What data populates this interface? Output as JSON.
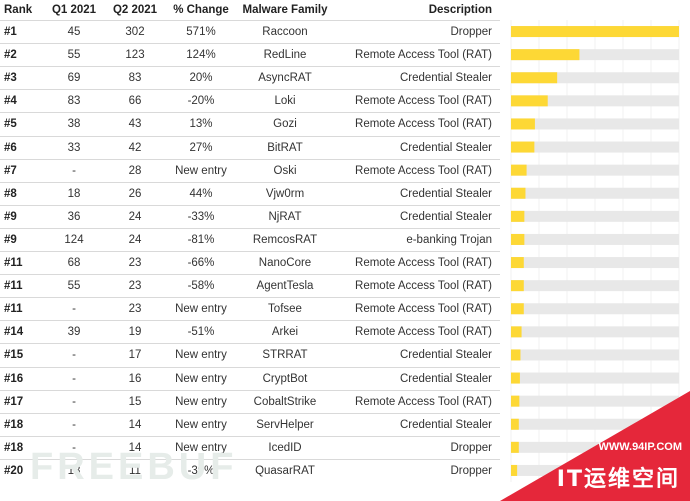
{
  "headers": {
    "rank": "Rank",
    "q1": "Q1 2021",
    "q2": "Q2 2021",
    "change": "% Change",
    "family": "Malware Family",
    "description": "Description"
  },
  "rows": [
    {
      "rank": "#1",
      "q1": "45",
      "q2": "302",
      "change": "571%",
      "family": "Raccoon",
      "description": "Dropper"
    },
    {
      "rank": "#2",
      "q1": "55",
      "q2": "123",
      "change": "124%",
      "family": "RedLine",
      "description": "Remote Access Tool (RAT)"
    },
    {
      "rank": "#3",
      "q1": "69",
      "q2": "83",
      "change": "20%",
      "family": "AsyncRAT",
      "description": "Credential Stealer"
    },
    {
      "rank": "#4",
      "q1": "83",
      "q2": "66",
      "change": "-20%",
      "family": "Loki",
      "description": "Remote Access Tool (RAT)"
    },
    {
      "rank": "#5",
      "q1": "38",
      "q2": "43",
      "change": "13%",
      "family": "Gozi",
      "description": "Remote Access Tool (RAT)"
    },
    {
      "rank": "#6",
      "q1": "33",
      "q2": "42",
      "change": "27%",
      "family": "BitRAT",
      "description": "Credential Stealer"
    },
    {
      "rank": "#7",
      "q1": "-",
      "q2": "28",
      "change": "New entry",
      "family": "Oski",
      "description": "Remote Access Tool (RAT)"
    },
    {
      "rank": "#8",
      "q1": "18",
      "q2": "26",
      "change": "44%",
      "family": "Vjw0rm",
      "description": "Credential Stealer"
    },
    {
      "rank": "#9",
      "q1": "36",
      "q2": "24",
      "change": "-33%",
      "family": "NjRAT",
      "description": "Credential Stealer"
    },
    {
      "rank": "#9",
      "q1": "124",
      "q2": "24",
      "change": "-81%",
      "family": "RemcosRAT",
      "description": "e-banking Trojan"
    },
    {
      "rank": "#11",
      "q1": "68",
      "q2": "23",
      "change": "-66%",
      "family": "NanoCore",
      "description": "Remote Access Tool (RAT)"
    },
    {
      "rank": "#11",
      "q1": "55",
      "q2": "23",
      "change": "-58%",
      "family": "AgentTesla",
      "description": "Remote Access Tool (RAT)"
    },
    {
      "rank": "#11",
      "q1": "-",
      "q2": "23",
      "change": "New entry",
      "family": "Tofsee",
      "description": "Remote Access Tool (RAT)"
    },
    {
      "rank": "#14",
      "q1": "39",
      "q2": "19",
      "change": "-51%",
      "family": "Arkei",
      "description": "Remote Access Tool (RAT)"
    },
    {
      "rank": "#15",
      "q1": "-",
      "q2": "17",
      "change": "New entry",
      "family": "STRRAT",
      "description": "Credential Stealer"
    },
    {
      "rank": "#16",
      "q1": "-",
      "q2": "16",
      "change": "New entry",
      "family": "CryptBot",
      "description": "Credential Stealer"
    },
    {
      "rank": "#17",
      "q1": "-",
      "q2": "15",
      "change": "New entry",
      "family": "CobaltStrike",
      "description": "Remote Access Tool (RAT)"
    },
    {
      "rank": "#18",
      "q1": "-",
      "q2": "14",
      "change": "New entry",
      "family": "ServHelper",
      "description": "Credential Stealer"
    },
    {
      "rank": "#18",
      "q1": "-",
      "q2": "14",
      "change": "New entry",
      "family": "IcedID",
      "description": "Dropper"
    },
    {
      "rank": "#20",
      "q1": "18",
      "q2": "11",
      "change": "-39%",
      "family": "QuasarRAT",
      "description": "Dropper"
    }
  ],
  "chart_data": {
    "type": "bar",
    "orientation": "horizontal",
    "categories": [
      "Raccoon",
      "RedLine",
      "AsyncRAT",
      "Loki",
      "Gozi",
      "BitRAT",
      "Oski",
      "Vjw0rm",
      "NjRAT",
      "RemcosRAT",
      "NanoCore",
      "AgentTesla",
      "Tofsee",
      "Arkei",
      "STRRAT",
      "CryptBot",
      "CobaltStrike",
      "ServHelper",
      "IcedID",
      "QuasarRAT"
    ],
    "values": [
      302,
      123,
      83,
      66,
      43,
      42,
      28,
      26,
      24,
      24,
      23,
      23,
      23,
      19,
      17,
      16,
      15,
      14,
      14,
      11
    ],
    "xlim": [
      0,
      302
    ],
    "grid": true,
    "bar_color": "#fdd835",
    "track_color": "#e8e8e8"
  },
  "watermark": {
    "text": "FREEBUF",
    "site_url": "WWW.94IP.COM",
    "slogan": "IT运维空间",
    "banner_color": "#e5273a"
  }
}
